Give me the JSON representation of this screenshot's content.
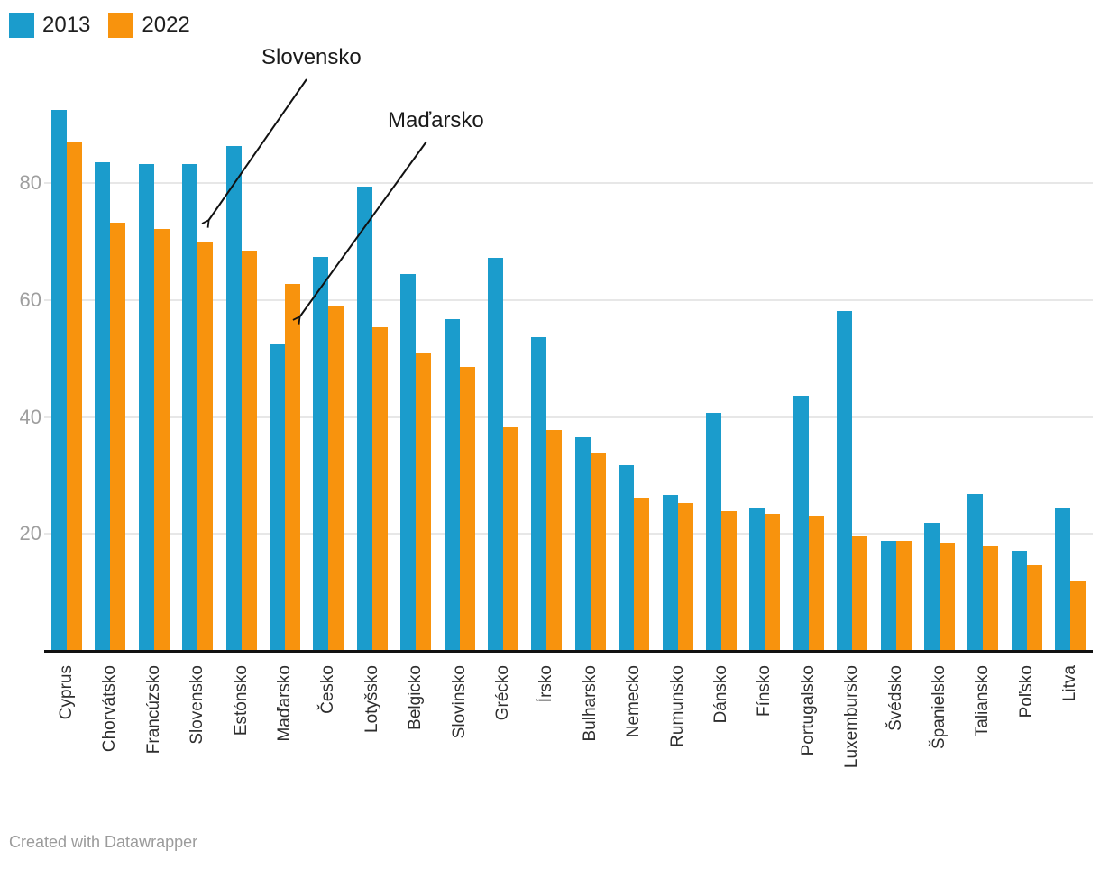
{
  "chart_data": {
    "type": "bar",
    "categories": [
      "Cyprus",
      "Chorvátsko",
      "Francúzsko",
      "Slovensko",
      "Estónsko",
      "Maďarsko",
      "Česko",
      "Lotyšsko",
      "Belgicko",
      "Slovinsko",
      "Grécko",
      "Írsko",
      "Bulharsko",
      "Nemecko",
      "Rumunsko",
      "Dánsko",
      "Fínsko",
      "Portugalsko",
      "Luxembursko",
      "Švédsko",
      "Španielsko",
      "Taliansko",
      "Poľsko",
      "Litva"
    ],
    "series": [
      {
        "name": "2013",
        "color": "#1b9ccc",
        "values": [
          92.5,
          83.5,
          83.2,
          83.2,
          86.4,
          52.4,
          67.3,
          79.4,
          64.5,
          56.7,
          67.2,
          53.6,
          36.5,
          31.7,
          26.7,
          40.7,
          24.3,
          43.6,
          58.1,
          18.8,
          21.9,
          26.8,
          17.1,
          24.3
        ]
      },
      {
        "name": "2022",
        "color": "#f8930d",
        "values": [
          87.1,
          73.2,
          72.1,
          70.0,
          68.5,
          62.7,
          59.1,
          55.3,
          50.9,
          48.6,
          38.3,
          37.7,
          33.7,
          26.2,
          25.3,
          23.9,
          23.5,
          23.2,
          19.6,
          18.8,
          18.5,
          17.9,
          14.6,
          11.8
        ]
      }
    ],
    "yticks": [
      20,
      40,
      60,
      80
    ],
    "ylim": [
      0,
      95
    ],
    "grid": true,
    "legend_position": "top-left",
    "annotations": [
      {
        "text": "Slovensko",
        "target_category": "Slovensko",
        "target_series": "2022"
      },
      {
        "text": "Maďarsko",
        "target_category": "Maďarsko",
        "target_series": "2022"
      }
    ]
  },
  "colors": {
    "series_2013": "#1b9ccc",
    "series_2022": "#f8930d",
    "gridline": "#e7e7e7",
    "axis_line": "#111111",
    "ytick_text": "#9e9e9e",
    "xlabel_text": "#2e2e2e",
    "footer_text": "#9b9b9b"
  },
  "footer": {
    "credit": "Created with Datawrapper"
  }
}
